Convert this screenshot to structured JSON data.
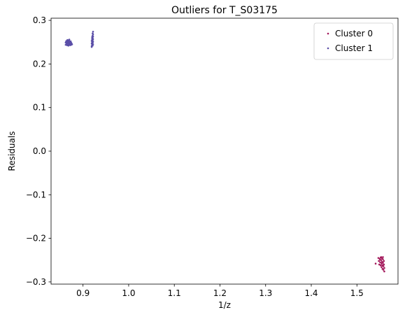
{
  "chart_data": {
    "type": "scatter",
    "title": "Outliers for T_S03175",
    "xlabel": "1/z",
    "ylabel": "Residuals",
    "xlim": [
      0.83,
      1.59
    ],
    "ylim": [
      -0.305,
      0.305
    ],
    "xticks": [
      0.9,
      1.0,
      1.1,
      1.2,
      1.3,
      1.4,
      1.5
    ],
    "xtick_labels": [
      "0.9",
      "1.0",
      "1.1",
      "1.2",
      "1.3",
      "1.4",
      "1.5"
    ],
    "yticks": [
      -0.3,
      -0.2,
      -0.1,
      0.0,
      0.1,
      0.2,
      0.3
    ],
    "ytick_labels": [
      "−0.3",
      "−0.2",
      "−0.1",
      "0.0",
      "0.1",
      "0.2",
      "0.3"
    ],
    "grid": false,
    "legend_position": "top-right",
    "series": [
      {
        "name": "Cluster 0",
        "color": "#a3195b",
        "points": [
          [
            1.541,
            -0.258
          ],
          [
            1.547,
            -0.245
          ],
          [
            1.548,
            -0.252
          ],
          [
            1.549,
            -0.26
          ],
          [
            1.55,
            -0.247
          ],
          [
            1.551,
            -0.255
          ],
          [
            1.552,
            -0.262
          ],
          [
            1.552,
            -0.244
          ],
          [
            1.553,
            -0.25
          ],
          [
            1.554,
            -0.258
          ],
          [
            1.554,
            -0.266
          ],
          [
            1.555,
            -0.246
          ],
          [
            1.555,
            -0.254
          ],
          [
            1.556,
            -0.262
          ],
          [
            1.556,
            -0.27
          ],
          [
            1.557,
            -0.248
          ],
          [
            1.557,
            -0.256
          ],
          [
            1.558,
            -0.264
          ],
          [
            1.558,
            -0.272
          ],
          [
            1.559,
            -0.252
          ],
          [
            1.559,
            -0.26
          ],
          [
            1.56,
            -0.268
          ],
          [
            1.56,
            -0.276
          ],
          [
            1.553,
            -0.243
          ],
          [
            1.551,
            -0.249
          ],
          [
            1.557,
            -0.243
          ]
        ]
      },
      {
        "name": "Cluster 1",
        "color": "#5b4fa8",
        "points": [
          [
            0.862,
            0.244
          ],
          [
            0.862,
            0.249
          ],
          [
            0.863,
            0.252
          ],
          [
            0.864,
            0.246
          ],
          [
            0.864,
            0.25
          ],
          [
            0.865,
            0.254
          ],
          [
            0.865,
            0.243
          ],
          [
            0.866,
            0.248
          ],
          [
            0.866,
            0.252
          ],
          [
            0.867,
            0.245
          ],
          [
            0.867,
            0.25
          ],
          [
            0.868,
            0.254
          ],
          [
            0.868,
            0.247
          ],
          [
            0.869,
            0.251
          ],
          [
            0.869,
            0.244
          ],
          [
            0.87,
            0.249
          ],
          [
            0.87,
            0.253
          ],
          [
            0.871,
            0.246
          ],
          [
            0.871,
            0.25
          ],
          [
            0.872,
            0.243
          ],
          [
            0.872,
            0.248
          ],
          [
            0.873,
            0.252
          ],
          [
            0.873,
            0.245
          ],
          [
            0.874,
            0.249
          ],
          [
            0.874,
            0.244
          ],
          [
            0.875,
            0.247
          ],
          [
            0.876,
            0.245
          ],
          [
            0.866,
            0.255
          ],
          [
            0.87,
            0.256
          ],
          [
            0.868,
            0.242
          ],
          [
            0.919,
            0.241
          ],
          [
            0.919,
            0.247
          ],
          [
            0.919,
            0.253
          ],
          [
            0.92,
            0.259
          ],
          [
            0.92,
            0.244
          ],
          [
            0.92,
            0.25
          ],
          [
            0.92,
            0.256
          ],
          [
            0.92,
            0.262
          ],
          [
            0.921,
            0.242
          ],
          [
            0.921,
            0.248
          ],
          [
            0.921,
            0.254
          ],
          [
            0.921,
            0.26
          ],
          [
            0.921,
            0.265
          ],
          [
            0.922,
            0.245
          ],
          [
            0.922,
            0.251
          ],
          [
            0.922,
            0.257
          ],
          [
            0.922,
            0.263
          ],
          [
            0.922,
            0.268
          ],
          [
            0.922,
            0.274
          ],
          [
            0.919,
            0.239
          ],
          [
            0.921,
            0.27
          ]
        ]
      }
    ]
  }
}
